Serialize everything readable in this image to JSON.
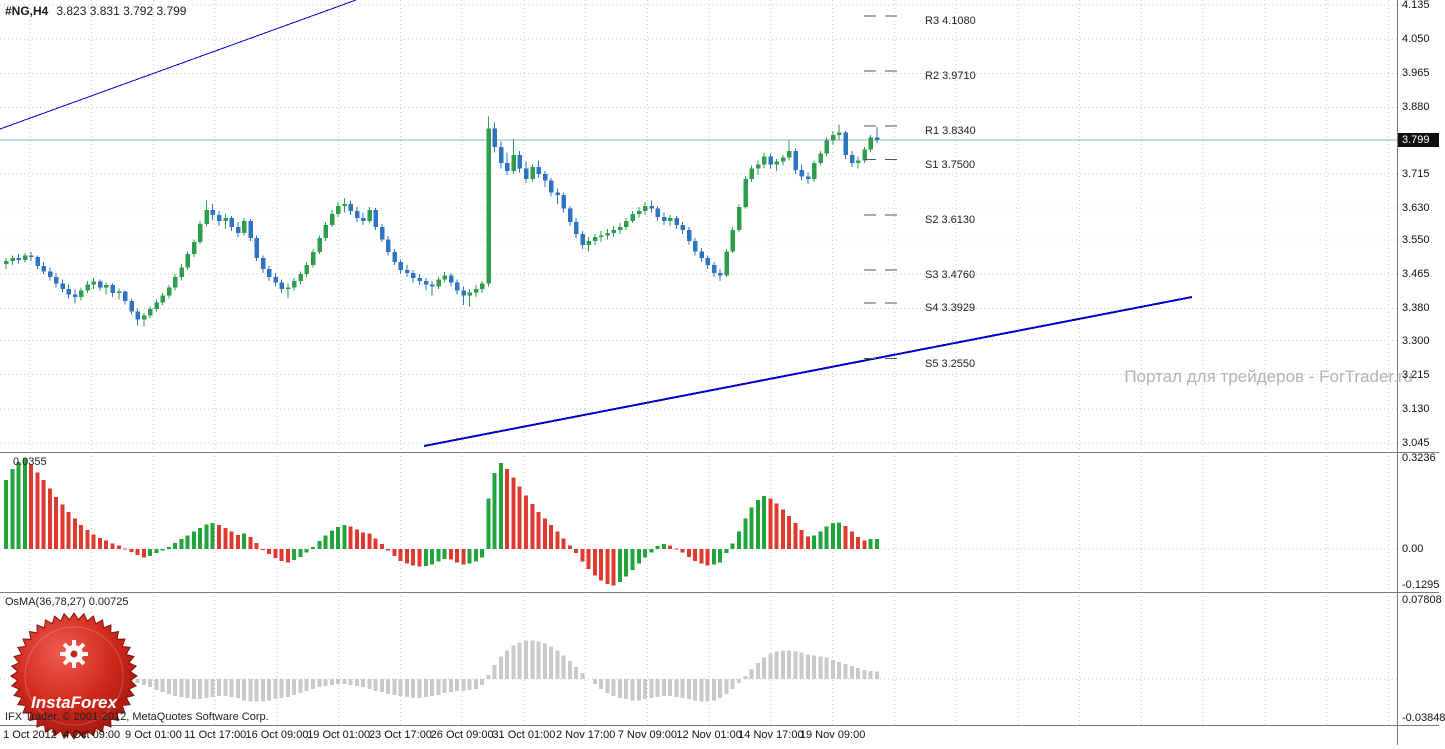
{
  "ui": {
    "title_symbol": "#NG,H4",
    "title_ohlc": "3.823 3.831 3.792 3.799",
    "watermark": "Портал для трейдеров - ForTrader.ru",
    "copyright": "IFX Trader, © 2001-2012, MetaQuotes Software Corp.",
    "logo_text": "InstaForex",
    "current_price_label": "3.799"
  },
  "colors": {
    "candle_up": "#2e9e4e",
    "candle_down": "#2f74c0",
    "hist_up": "#1fa53c",
    "hist_down": "#e03a30",
    "osma_bar": "#c9c9c9",
    "trendline": "#0000c8",
    "grid": "#c9c9c9",
    "price_line": "#8fb0c4",
    "divider": "#7b7b7b",
    "pivot_dash": "#555555"
  },
  "time_axis": {
    "labels": [
      "1 Oct 2012",
      "4 Oct 09:00",
      "9 Oct 01:00",
      "11 Oct 17:00",
      "16 Oct 09:00",
      "19 Oct 01:00",
      "23 Oct 17:00",
      "26 Oct 09:00",
      "31 Oct 01:00",
      "2 Nov 17:00",
      "7 Nov 09:00",
      "12 Nov 01:00",
      "14 Nov 17:00",
      "19 Nov 09:00"
    ]
  },
  "chart_data": [
    {
      "type": "candlestick",
      "title": "#NG,H4",
      "ohlc_readout": "3.823 3.831 3.792 3.799",
      "ylim": [
        3.02,
        4.17
      ],
      "y_axis_ticks": [
        4.135,
        4.05,
        3.965,
        3.88,
        3.715,
        3.63,
        3.55,
        3.465,
        3.38,
        3.3,
        3.215,
        3.13,
        3.045
      ],
      "current_price": 3.799,
      "pivot_levels": [
        {
          "label": "R3 4.1080",
          "value": 4.108
        },
        {
          "label": "R2 3.9710",
          "value": 3.971
        },
        {
          "label": "R1 3.8340",
          "value": 3.834
        },
        {
          "label": "S1 3.7500",
          "value": 3.75
        },
        {
          "label": "S2 3.6130",
          "value": 3.613
        },
        {
          "label": "S3 3.4760",
          "value": 3.476
        },
        {
          "label": "S4 3.3929",
          "value": 3.3929
        },
        {
          "label": "S5 3.2550",
          "value": 3.255
        }
      ],
      "trendlines": [
        {
          "x1": 0,
          "y1": 129,
          "x2": 356,
          "y2": 0,
          "width": 1
        },
        {
          "x1": 424,
          "y1": 446,
          "x2": 1192,
          "y2": 297,
          "width": 2
        }
      ],
      "ohlc": [
        [
          3.49,
          3.505,
          3.478,
          3.498
        ],
        [
          3.498,
          3.512,
          3.488,
          3.505
        ],
        [
          3.505,
          3.515,
          3.492,
          3.5
        ],
        [
          3.5,
          3.518,
          3.494,
          3.512
        ],
        [
          3.512,
          3.52,
          3.498,
          3.508
        ],
        [
          3.508,
          3.512,
          3.478,
          3.485
        ],
        [
          3.485,
          3.495,
          3.465,
          3.472
        ],
        [
          3.472,
          3.482,
          3.45,
          3.458
        ],
        [
          3.458,
          3.468,
          3.432,
          3.442
        ],
        [
          3.442,
          3.452,
          3.42,
          3.428
        ],
        [
          3.428,
          3.44,
          3.405,
          3.415
        ],
        [
          3.415,
          3.428,
          3.392,
          3.408
        ],
        [
          3.408,
          3.432,
          3.4,
          3.425
        ],
        [
          3.425,
          3.448,
          3.418,
          3.44
        ],
        [
          3.44,
          3.455,
          3.428,
          3.447
        ],
        [
          3.447,
          3.452,
          3.425,
          3.432
        ],
        [
          3.432,
          3.445,
          3.415,
          3.438
        ],
        [
          3.438,
          3.442,
          3.408,
          3.418
        ],
        [
          3.418,
          3.43,
          3.402,
          3.422
        ],
        [
          3.422,
          3.425,
          3.39,
          3.398
        ],
        [
          3.398,
          3.405,
          3.365,
          3.372
        ],
        [
          3.372,
          3.38,
          3.338,
          3.352
        ],
        [
          3.352,
          3.368,
          3.335,
          3.362
        ],
        [
          3.362,
          3.385,
          3.355,
          3.378
        ],
        [
          3.378,
          3.402,
          3.372,
          3.395
        ],
        [
          3.395,
          3.418,
          3.388,
          3.412
        ],
        [
          3.412,
          3.438,
          3.405,
          3.432
        ],
        [
          3.432,
          3.465,
          3.425,
          3.458
        ],
        [
          3.458,
          3.49,
          3.45,
          3.482
        ],
        [
          3.482,
          3.522,
          3.475,
          3.515
        ],
        [
          3.515,
          3.552,
          3.508,
          3.545
        ],
        [
          3.545,
          3.598,
          3.54,
          3.59
        ],
        [
          3.59,
          3.648,
          3.585,
          3.625
        ],
        [
          3.625,
          3.64,
          3.6,
          3.612
        ],
        [
          3.612,
          3.622,
          3.585,
          3.598
        ],
        [
          3.598,
          3.615,
          3.578,
          3.605
        ],
        [
          3.605,
          3.61,
          3.572,
          3.582
        ],
        [
          3.582,
          3.595,
          3.558,
          3.568
        ],
        [
          3.568,
          3.605,
          3.562,
          3.598
        ],
        [
          3.598,
          3.602,
          3.548,
          3.555
        ],
        [
          3.555,
          3.562,
          3.498,
          3.505
        ],
        [
          3.505,
          3.512,
          3.468,
          3.478
        ],
        [
          3.478,
          3.485,
          3.448,
          3.458
        ],
        [
          3.458,
          3.468,
          3.435,
          3.445
        ],
        [
          3.445,
          3.452,
          3.418,
          3.428
        ],
        [
          3.428,
          3.442,
          3.405,
          3.432
        ],
        [
          3.432,
          3.455,
          3.425,
          3.448
        ],
        [
          3.448,
          3.472,
          3.44,
          3.465
        ],
        [
          3.465,
          3.495,
          3.458,
          3.488
        ],
        [
          3.488,
          3.528,
          3.482,
          3.52
        ],
        [
          3.52,
          3.562,
          3.515,
          3.555
        ],
        [
          3.555,
          3.595,
          3.548,
          3.588
        ],
        [
          3.588,
          3.625,
          3.582,
          3.615
        ],
        [
          3.615,
          3.645,
          3.608,
          3.635
        ],
        [
          3.635,
          3.655,
          3.618,
          3.64
        ],
        [
          3.64,
          3.648,
          3.612,
          3.622
        ],
        [
          3.622,
          3.632,
          3.595,
          3.605
        ],
        [
          3.605,
          3.618,
          3.588,
          3.598
        ],
        [
          3.598,
          3.632,
          3.592,
          3.625
        ],
        [
          3.625,
          3.63,
          3.575,
          3.582
        ],
        [
          3.582,
          3.59,
          3.545,
          3.552
        ],
        [
          3.552,
          3.56,
          3.512,
          3.52
        ],
        [
          3.52,
          3.528,
          3.488,
          3.495
        ],
        [
          3.495,
          3.502,
          3.465,
          3.475
        ],
        [
          3.475,
          3.488,
          3.458,
          3.468
        ],
        [
          3.468,
          3.475,
          3.445,
          3.455
        ],
        [
          3.455,
          3.465,
          3.438,
          3.448
        ],
        [
          3.448,
          3.455,
          3.425,
          3.44
        ],
        [
          3.44,
          3.448,
          3.412,
          3.435
        ],
        [
          3.435,
          3.458,
          3.428,
          3.452
        ],
        [
          3.452,
          3.47,
          3.445,
          3.462
        ],
        [
          3.462,
          3.468,
          3.435,
          3.445
        ],
        [
          3.445,
          3.452,
          3.415,
          3.425
        ],
        [
          3.425,
          3.435,
          3.388,
          3.412
        ],
        [
          3.412,
          3.428,
          3.385,
          3.42
        ],
        [
          3.42,
          3.438,
          3.408,
          3.428
        ],
        [
          3.428,
          3.448,
          3.418,
          3.442
        ],
        [
          3.442,
          3.858,
          3.435,
          3.828
        ],
        [
          3.828,
          3.842,
          3.768,
          3.782
        ],
        [
          3.782,
          3.795,
          3.728,
          3.742
        ],
        [
          3.742,
          3.768,
          3.712,
          3.722
        ],
        [
          3.722,
          3.802,
          3.715,
          3.762
        ],
        [
          3.762,
          3.772,
          3.718,
          3.728
        ],
        [
          3.728,
          3.745,
          3.692,
          3.702
        ],
        [
          3.702,
          3.738,
          3.695,
          3.732
        ],
        [
          3.732,
          3.748,
          3.705,
          3.715
        ],
        [
          3.715,
          3.722,
          3.682,
          3.698
        ],
        [
          3.698,
          3.705,
          3.658,
          3.668
        ],
        [
          3.668,
          3.678,
          3.64,
          3.662
        ],
        [
          3.662,
          3.668,
          3.618,
          3.628
        ],
        [
          3.628,
          3.635,
          3.585,
          3.595
        ],
        [
          3.595,
          3.605,
          3.555,
          3.565
        ],
        [
          3.565,
          3.572,
          3.528,
          3.538
        ],
        [
          3.538,
          3.558,
          3.522,
          3.548
        ],
        [
          3.548,
          3.565,
          3.538,
          3.558
        ],
        [
          3.558,
          3.572,
          3.545,
          3.562
        ],
        [
          3.562,
          3.578,
          3.552,
          3.568
        ],
        [
          3.568,
          3.585,
          3.558,
          3.575
        ],
        [
          3.575,
          3.592,
          3.565,
          3.582
        ],
        [
          3.582,
          3.605,
          3.575,
          3.598
        ],
        [
          3.598,
          3.622,
          3.592,
          3.615
        ],
        [
          3.615,
          3.632,
          3.605,
          3.622
        ],
        [
          3.622,
          3.645,
          3.612,
          3.635
        ],
        [
          3.635,
          3.648,
          3.618,
          3.628
        ],
        [
          3.628,
          3.635,
          3.598,
          3.608
        ],
        [
          3.608,
          3.618,
          3.588,
          3.598
        ],
        [
          3.598,
          3.612,
          3.585,
          3.605
        ],
        [
          3.605,
          3.61,
          3.578,
          3.588
        ],
        [
          3.588,
          3.595,
          3.565,
          3.575
        ],
        [
          3.575,
          3.582,
          3.538,
          3.548
        ],
        [
          3.548,
          3.555,
          3.512,
          3.522
        ],
        [
          3.522,
          3.53,
          3.495,
          3.505
        ],
        [
          3.505,
          3.512,
          3.478,
          3.488
        ],
        [
          3.488,
          3.495,
          3.458,
          3.468
        ],
        [
          3.468,
          3.478,
          3.448,
          3.462
        ],
        [
          3.462,
          3.528,
          3.458,
          3.522
        ],
        [
          3.522,
          3.582,
          3.518,
          3.575
        ],
        [
          3.575,
          3.638,
          3.57,
          3.632
        ],
        [
          3.632,
          3.708,
          3.628,
          3.702
        ],
        [
          3.702,
          3.735,
          3.695,
          3.728
        ],
        [
          3.728,
          3.748,
          3.712,
          3.738
        ],
        [
          3.738,
          3.768,
          3.728,
          3.758
        ],
        [
          3.758,
          3.765,
          3.728,
          3.738
        ],
        [
          3.738,
          3.752,
          3.722,
          3.745
        ],
        [
          3.745,
          3.762,
          3.735,
          3.755
        ],
        [
          3.755,
          3.798,
          3.748,
          3.772
        ],
        [
          3.772,
          3.778,
          3.715,
          3.725
        ],
        [
          3.725,
          3.738,
          3.698,
          3.708
        ],
        [
          3.708,
          3.718,
          3.688,
          3.702
        ],
        [
          3.702,
          3.748,
          3.695,
          3.742
        ],
        [
          3.742,
          3.772,
          3.735,
          3.765
        ],
        [
          3.765,
          3.805,
          3.758,
          3.798
        ],
        [
          3.798,
          3.822,
          3.788,
          3.812
        ],
        [
          3.812,
          3.838,
          3.798,
          3.818
        ],
        [
          3.818,
          3.822,
          3.752,
          3.762
        ],
        [
          3.762,
          3.772,
          3.732,
          3.742
        ],
        [
          3.742,
          3.758,
          3.728,
          3.748
        ],
        [
          3.748,
          3.782,
          3.742,
          3.775
        ],
        [
          3.775,
          3.812,
          3.768,
          3.805
        ],
        [
          3.805,
          3.831,
          3.792,
          3.799
        ]
      ]
    },
    {
      "type": "bar",
      "name": "momentum-histogram",
      "value_label": "0.0355",
      "ylim": [
        -0.1295,
        0.3236
      ],
      "y_ticks": [
        [
          "0.3236",
          0.3236
        ],
        [
          "0.00",
          0
        ],
        [
          "-0.1295",
          -0.1295
        ]
      ],
      "values": [
        0.245,
        0.285,
        0.31,
        0.323,
        0.3,
        0.272,
        0.245,
        0.215,
        0.185,
        0.158,
        0.132,
        0.108,
        0.085,
        0.068,
        0.052,
        0.04,
        0.03,
        0.02,
        0.012,
        0.002,
        -0.01,
        -0.022,
        -0.03,
        -0.025,
        -0.015,
        -0.005,
        0.008,
        0.022,
        0.035,
        0.048,
        0.062,
        0.075,
        0.088,
        0.092,
        0.085,
        0.075,
        0.062,
        0.05,
        0.055,
        0.042,
        0.022,
        0.0,
        -0.018,
        -0.032,
        -0.042,
        -0.048,
        -0.04,
        -0.028,
        -0.012,
        0.008,
        0.028,
        0.048,
        0.065,
        0.078,
        0.085,
        0.08,
        0.07,
        0.058,
        0.055,
        0.038,
        0.018,
        -0.005,
        -0.025,
        -0.042,
        -0.052,
        -0.058,
        -0.062,
        -0.06,
        -0.055,
        -0.045,
        -0.035,
        -0.038,
        -0.048,
        -0.055,
        -0.052,
        -0.045,
        -0.03,
        0.18,
        0.27,
        0.305,
        0.285,
        0.255,
        0.222,
        0.19,
        0.16,
        0.132,
        0.108,
        0.085,
        0.062,
        0.038,
        0.012,
        -0.015,
        -0.045,
        -0.072,
        -0.095,
        -0.112,
        -0.125,
        -0.129,
        -0.118,
        -0.098,
        -0.075,
        -0.052,
        -0.03,
        -0.012,
        0.01,
        0.018,
        0.012,
        0.002,
        -0.012,
        -0.028,
        -0.042,
        -0.052,
        -0.058,
        -0.055,
        -0.048,
        -0.015,
        0.02,
        0.062,
        0.108,
        0.148,
        0.175,
        0.188,
        0.18,
        0.162,
        0.14,
        0.118,
        0.092,
        0.068,
        0.045,
        0.048,
        0.062,
        0.08,
        0.092,
        0.095,
        0.082,
        0.062,
        0.042,
        0.03,
        0.035,
        0.0355
      ]
    },
    {
      "type": "bar",
      "name": "OsMA",
      "label": "OsMA(36,78,27) 0.00725",
      "ylim": [
        -0.03848,
        0.07808
      ],
      "y_ticks": [
        [
          "0.07808",
          0.07808
        ],
        [
          "-0.03848",
          -0.03848
        ]
      ],
      "values": [
        0,
        0,
        0,
        0,
        0,
        0,
        0,
        0,
        0,
        0,
        0,
        0,
        0,
        0,
        0,
        0,
        0,
        0,
        0,
        0,
        -0.002,
        -0.004,
        -0.006,
        -0.008,
        -0.011,
        -0.013,
        -0.015,
        -0.017,
        -0.018,
        -0.019,
        -0.02,
        -0.02,
        -0.019,
        -0.018,
        -0.017,
        -0.017,
        -0.018,
        -0.019,
        -0.021,
        -0.022,
        -0.022,
        -0.022,
        -0.021,
        -0.02,
        -0.019,
        -0.018,
        -0.016,
        -0.014,
        -0.012,
        -0.01,
        -0.008,
        -0.007,
        -0.006,
        -0.005,
        -0.005,
        -0.006,
        -0.007,
        -0.008,
        -0.01,
        -0.012,
        -0.013,
        -0.015,
        -0.016,
        -0.017,
        -0.018,
        -0.019,
        -0.019,
        -0.018,
        -0.017,
        -0.016,
        -0.014,
        -0.013,
        -0.012,
        -0.012,
        -0.011,
        -0.01,
        -0.006,
        0.004,
        0.014,
        0.022,
        0.028,
        0.033,
        0.036,
        0.038,
        0.038,
        0.037,
        0.035,
        0.032,
        0.028,
        0.023,
        0.018,
        0.012,
        0.006,
        0.0,
        -0.005,
        -0.01,
        -0.014,
        -0.017,
        -0.019,
        -0.02,
        -0.021,
        -0.021,
        -0.02,
        -0.019,
        -0.018,
        -0.017,
        -0.017,
        -0.018,
        -0.019,
        -0.02,
        -0.021,
        -0.022,
        -0.022,
        -0.021,
        -0.019,
        -0.015,
        -0.01,
        -0.004,
        0.003,
        0.01,
        0.016,
        0.021,
        0.025,
        0.027,
        0.028,
        0.028,
        0.027,
        0.026,
        0.024,
        0.023,
        0.022,
        0.021,
        0.019,
        0.017,
        0.015,
        0.013,
        0.011,
        0.009,
        0.008,
        0.00725
      ]
    }
  ]
}
